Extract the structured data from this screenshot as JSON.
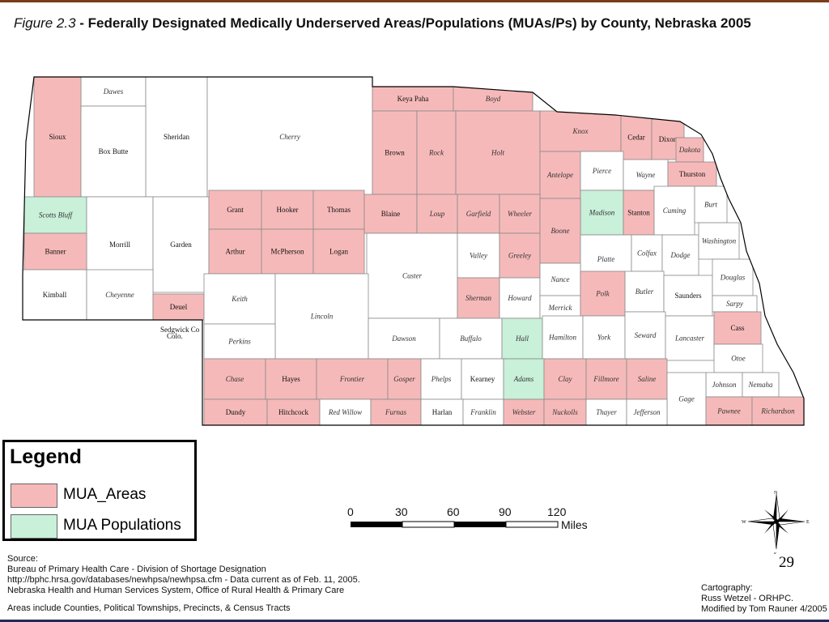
{
  "title": {
    "figure_label": "Figure 2.3",
    "text": " - Federally Designated Medically Underserved Areas/Populations (MUAs/Ps) by County, Nebraska 2005"
  },
  "colors": {
    "mua_area": "#f6b9b9",
    "mua_population": "#c9f0d9",
    "border": "#8a8a8a",
    "outline": "#000000"
  },
  "counties": [
    {
      "name": "Dawes",
      "status": "none"
    },
    {
      "name": "Sheridan",
      "status": "none"
    },
    {
      "name": "Cherry",
      "status": "none"
    },
    {
      "name": "Keya Paha",
      "status": "area"
    },
    {
      "name": "Boyd",
      "status": "area"
    },
    {
      "name": "Sioux",
      "status": "area"
    },
    {
      "name": "Box Butte",
      "status": "none"
    },
    {
      "name": "Brown",
      "status": "area"
    },
    {
      "name": "Rock",
      "status": "area"
    },
    {
      "name": "Holt",
      "status": "area"
    },
    {
      "name": "Knox",
      "status": "area"
    },
    {
      "name": "Cedar",
      "status": "area"
    },
    {
      "name": "Dixon",
      "status": "area"
    },
    {
      "name": "Dakota",
      "status": "area"
    },
    {
      "name": "Antelope",
      "status": "area"
    },
    {
      "name": "Pierce",
      "status": "none"
    },
    {
      "name": "Wayne",
      "status": "none"
    },
    {
      "name": "Thurston",
      "status": "area"
    },
    {
      "name": "Scotts Bluff",
      "status": "population"
    },
    {
      "name": "Morrill",
      "status": "none"
    },
    {
      "name": "Garden",
      "status": "none"
    },
    {
      "name": "Grant",
      "status": "area"
    },
    {
      "name": "Hooker",
      "status": "area"
    },
    {
      "name": "Thomas",
      "status": "area"
    },
    {
      "name": "Blaine",
      "status": "area"
    },
    {
      "name": "Loup",
      "status": "area"
    },
    {
      "name": "Garfield",
      "status": "area"
    },
    {
      "name": "Wheeler",
      "status": "area"
    },
    {
      "name": "Madison",
      "status": "population"
    },
    {
      "name": "Stanton",
      "status": "area"
    },
    {
      "name": "Cuming",
      "status": "none"
    },
    {
      "name": "Burt",
      "status": "none"
    },
    {
      "name": "Banner",
      "status": "area"
    },
    {
      "name": "Arthur",
      "status": "area"
    },
    {
      "name": "McPherson",
      "status": "area"
    },
    {
      "name": "Logan",
      "status": "area"
    },
    {
      "name": "Custer",
      "status": "none"
    },
    {
      "name": "Valley",
      "status": "none"
    },
    {
      "name": "Greeley",
      "status": "area"
    },
    {
      "name": "Boone",
      "status": "area"
    },
    {
      "name": "Platte",
      "status": "none"
    },
    {
      "name": "Colfax",
      "status": "none"
    },
    {
      "name": "Dodge",
      "status": "none"
    },
    {
      "name": "Washington",
      "status": "none"
    },
    {
      "name": "Kimball",
      "status": "none"
    },
    {
      "name": "Cheyenne",
      "status": "none"
    },
    {
      "name": "Deuel",
      "status": "area"
    },
    {
      "name": "Keith",
      "status": "none"
    },
    {
      "name": "Lincoln",
      "status": "none"
    },
    {
      "name": "Sherman",
      "status": "area"
    },
    {
      "name": "Howard",
      "status": "none"
    },
    {
      "name": "Nance",
      "status": "none"
    },
    {
      "name": "Merrick",
      "status": "none"
    },
    {
      "name": "Polk",
      "status": "area"
    },
    {
      "name": "Butler",
      "status": "none"
    },
    {
      "name": "Saunders",
      "status": "none"
    },
    {
      "name": "Douglas",
      "status": "none"
    },
    {
      "name": "Sarpy",
      "status": "none"
    },
    {
      "name": "Perkins",
      "status": "none"
    },
    {
      "name": "Dawson",
      "status": "none"
    },
    {
      "name": "Buffalo",
      "status": "none"
    },
    {
      "name": "Hall",
      "status": "population"
    },
    {
      "name": "Hamilton",
      "status": "none"
    },
    {
      "name": "York",
      "status": "none"
    },
    {
      "name": "Seward",
      "status": "none"
    },
    {
      "name": "Lancaster",
      "status": "none"
    },
    {
      "name": "Cass",
      "status": "area"
    },
    {
      "name": "Otoe",
      "status": "none"
    },
    {
      "name": "Chase",
      "status": "area"
    },
    {
      "name": "Hayes",
      "status": "area"
    },
    {
      "name": "Frontier",
      "status": "area"
    },
    {
      "name": "Gosper",
      "status": "area"
    },
    {
      "name": "Phelps",
      "status": "none"
    },
    {
      "name": "Kearney",
      "status": "none"
    },
    {
      "name": "Adams",
      "status": "population"
    },
    {
      "name": "Clay",
      "status": "area"
    },
    {
      "name": "Fillmore",
      "status": "area"
    },
    {
      "name": "Saline",
      "status": "area"
    },
    {
      "name": "Johnson",
      "status": "none"
    },
    {
      "name": "Nemaha",
      "status": "none"
    },
    {
      "name": "Gage",
      "status": "none"
    },
    {
      "name": "Dundy",
      "status": "area"
    },
    {
      "name": "Hitchcock",
      "status": "area"
    },
    {
      "name": "Red Willow",
      "status": "none"
    },
    {
      "name": "Furnas",
      "status": "area"
    },
    {
      "name": "Harlan",
      "status": "none"
    },
    {
      "name": "Franklin",
      "status": "none"
    },
    {
      "name": "Webster",
      "status": "area"
    },
    {
      "name": "Nuckolls",
      "status": "area"
    },
    {
      "name": "Thayer",
      "status": "none"
    },
    {
      "name": "Jefferson",
      "status": "none"
    },
    {
      "name": "Pawnee",
      "status": "area"
    },
    {
      "name": "Richardson",
      "status": "area"
    }
  ],
  "map_note": "Sedgwick Co\nColo.",
  "legend": {
    "title": "Legend",
    "items": [
      {
        "label": "MUA_Areas",
        "color": "#f6b9b9"
      },
      {
        "label": "MUA Populations",
        "color": "#c9f0d9"
      }
    ]
  },
  "scale_bar": {
    "ticks": [
      "0",
      "30",
      "60",
      "90",
      "120"
    ],
    "unit": "Miles"
  },
  "compass": {
    "n": "N",
    "s": "S",
    "e": "E",
    "w": "W"
  },
  "page_number": "29",
  "source": {
    "heading": "Source:",
    "lines": [
      "Bureau of Primary Health Care - Division of Shortage Designation",
      "http://bphc.hrsa.gov/databases/newhpsa/newhpsa.cfm - Data current as of Feb. 11, 2005.",
      "Nebraska Health and Human Services System, Office of Rural Health & Primary Care"
    ],
    "note": "Areas include Counties, Political Townships, Precincts, & Census Tracts"
  },
  "cartography": {
    "heading": "Cartography:",
    "line1": "Russ Wetzel - ORHPC.",
    "line2": "Modified by Tom Rauner 4/2005"
  }
}
